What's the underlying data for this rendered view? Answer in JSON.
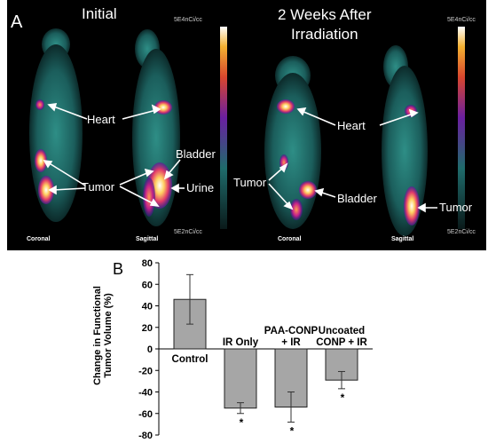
{
  "panel_a": {
    "letter": "A",
    "title_initial": "Initial",
    "title_after": "2 Weeks After\nIrradiation",
    "scale_max": "5E4nCi/cc",
    "scale_min": "5E2nCi/cc",
    "view_coronal": "Coronal",
    "view_sagittal": "Sagittal",
    "labels": {
      "heart": "Heart",
      "tumor": "Tumor",
      "bladder": "Bladder",
      "urine": "Urine"
    }
  },
  "panel_b": {
    "letter": "B",
    "ylabel": "Change in Functional Tumor Volume (%)"
  },
  "chart_data": {
    "type": "bar",
    "categories": [
      "Control",
      "IR Only",
      "PAA-CONP\n+ IR",
      "Uncoated\nCONP + IR"
    ],
    "values": [
      46,
      -55,
      -54,
      -29
    ],
    "error": [
      23,
      5,
      14,
      8
    ],
    "significant": [
      false,
      true,
      true,
      true
    ],
    "significance_marker": "*",
    "ylim": [
      -80,
      80
    ],
    "yticks": [
      80,
      60,
      40,
      20,
      0,
      -20,
      -40,
      -60,
      -80
    ],
    "ylabel": "Change in Functional Tumor Volume (%)",
    "bar_color": "#a6a6a6"
  }
}
